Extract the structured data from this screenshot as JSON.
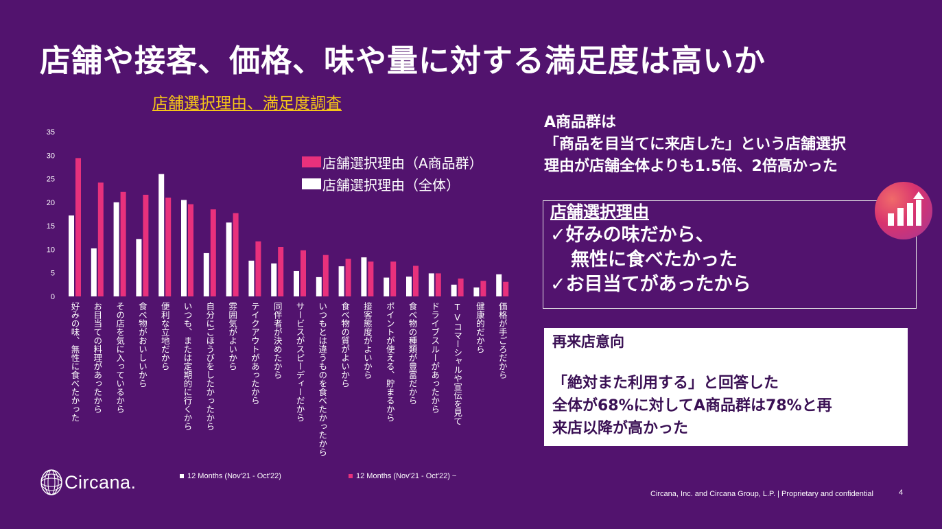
{
  "title": "店舗や接客、価格、味や量に対する満足度は高いか",
  "chart_data": {
    "type": "bar",
    "title": "店舗選択理由、満足度調査",
    "ylim": [
      0,
      35
    ],
    "yticks": [
      0,
      5,
      10,
      15,
      20,
      25,
      30,
      35
    ],
    "categories": [
      "好みの味、無性に食べたかった",
      "お目当ての料理があったから",
      "その店を気に入っているから",
      "食べ物がおいしいから",
      "便利な立地だから",
      "いつも、または定期的に行くから",
      "自分にごほうびをしたかったから",
      "雰囲気がよいから",
      "テイクアウトがあったから",
      "同伴者が決めたから",
      "サービスがスピーディーだから",
      "いつもとは違うものを食べたかったから",
      "食べ物の質がよいから",
      "接客態度がよいから",
      "ポイントが使える、貯まるから",
      "食べ物の種類が豊富だから",
      "ドライブスルーがあったから",
      "TVコマーシャルや宣伝を見て",
      "健康的だから",
      "価格が手ごろだから"
    ],
    "series": [
      {
        "name": "店舗選択理由（全体）",
        "color": "#ffffff",
        "values": [
          17.2,
          10.2,
          20.0,
          12.2,
          26.0,
          20.5,
          9.2,
          15.7,
          7.6,
          7.0,
          5.4,
          4.1,
          6.4,
          8.3,
          4.0,
          4.2,
          4.9,
          2.5,
          1.9,
          4.7
        ]
      },
      {
        "name": "店舗選択理由（A商品群）",
        "color": "#e8317c",
        "values": [
          29.4,
          24.2,
          22.2,
          21.6,
          21.0,
          19.6,
          18.5,
          17.7,
          11.7,
          10.5,
          9.8,
          8.8,
          8.0,
          7.4,
          7.4,
          6.5,
          4.9,
          3.8,
          3.3,
          3.1
        ]
      }
    ],
    "legend": [
      {
        "label": "店舗選択理由（A商品群）",
        "color": "#e8317c"
      },
      {
        "label": "店舗選択理由（全体）",
        "color": "#ffffff"
      }
    ],
    "bottom_legend": [
      {
        "label": "12 Months (Nov'21 - Oct'22)",
        "color": "#ffffff"
      },
      {
        "label": "12 Months (Nov'21 - Oct'22) ~",
        "color": "#e8317c"
      }
    ]
  },
  "callout": {
    "line1": "A商品群は",
    "line2": "「商品を目当てに来店した」という店舗選択",
    "line3": "理由が店舗全体よりも1.5倍、2倍高かった"
  },
  "reason_box": {
    "heading": "店舗選択理由",
    "line1": "✓好みの味だから、",
    "line2": "無性に食べたかった",
    "line3": "✓お目当てがあったから"
  },
  "revisit_box": {
    "heading": "再来店意向",
    "line1": "「絶対また利用する」と回答した",
    "line2": "全体が68%に対してA商品群は78%と再",
    "line3": "来店以降が高かった"
  },
  "logo": {
    "text": "Circana."
  },
  "footer": {
    "text": "Circana, Inc. and Circana Group, L.P. | Proprietary and confidential"
  },
  "page_number": "4",
  "icons": {
    "chart": "bar-chart-up-icon",
    "logo": "circana-globe-icon"
  }
}
